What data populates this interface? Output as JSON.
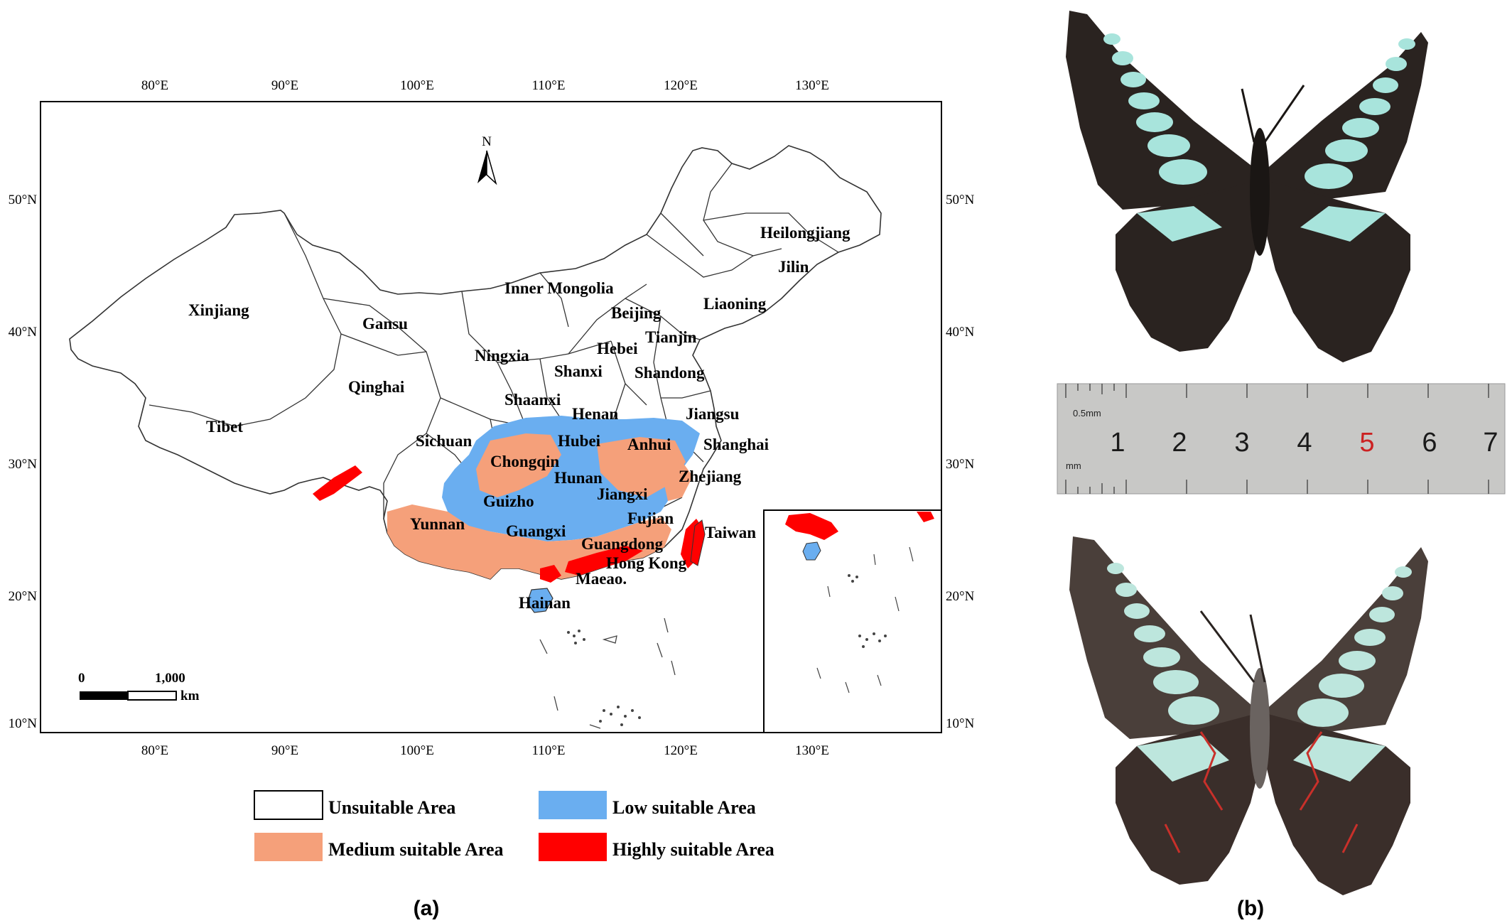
{
  "map": {
    "top_ticks": [
      "80°E",
      "90°E",
      "100°E",
      "110°E",
      "120°E",
      "130°E"
    ],
    "bottom_ticks": [
      "80°E",
      "90°E",
      "100°E",
      "110°E",
      "120°E",
      "130°E"
    ],
    "left_ticks": [
      "50°N",
      "40°N",
      "30°N",
      "20°N",
      "10°N"
    ],
    "right_ticks": [
      "50°N",
      "40°N",
      "30°N",
      "20°N",
      "10°N"
    ],
    "north_label": "N",
    "scale_bar": {
      "start": "0",
      "end": "1,000",
      "unit": "km"
    },
    "provinces": [
      "Heilongjiang",
      "Jilin",
      "Inner Mongolia",
      "Liaoning",
      "Beijing",
      "Tianjin",
      "Xinjiang",
      "Gansu",
      "Ningxia",
      "Hebei",
      "Shanxi",
      "Shandong",
      "Qinghai",
      "Shaanxi",
      "Henan",
      "Jiangsu",
      "Tibet",
      "Sichuan",
      "Hubei",
      "Anhui",
      "Shanghai",
      "Chongqin",
      "Hunan",
      "Zhejiang",
      "Guizho",
      "Jiangxi",
      "Fujian",
      "Yunnan",
      "Guangxi",
      "Guangdong",
      "Taiwan",
      "Hong Kong",
      "Maeao.",
      "Hainan"
    ]
  },
  "legend": {
    "items": [
      {
        "label": "Unsuitable Area",
        "color": "#ffffff"
      },
      {
        "label": "Low suitable Area",
        "color": "#6aaef0"
      },
      {
        "label": "Medium suitable Area",
        "color": "#f5a07a"
      },
      {
        "label": "Highly suitable Area",
        "color": "#ff0000"
      }
    ]
  },
  "ruler": {
    "numbers": [
      "1",
      "2",
      "3",
      "4",
      "5",
      "6",
      "7"
    ],
    "small_top": "0.5mm",
    "small_bottom": "mm"
  },
  "panel_labels": {
    "a": "(a)",
    "b": "(b)"
  },
  "colors": {
    "low": "#6aaef0",
    "medium": "#f5a07a",
    "high": "#ff0000",
    "wing": "#2a2320",
    "band": "#a8e4dc"
  }
}
